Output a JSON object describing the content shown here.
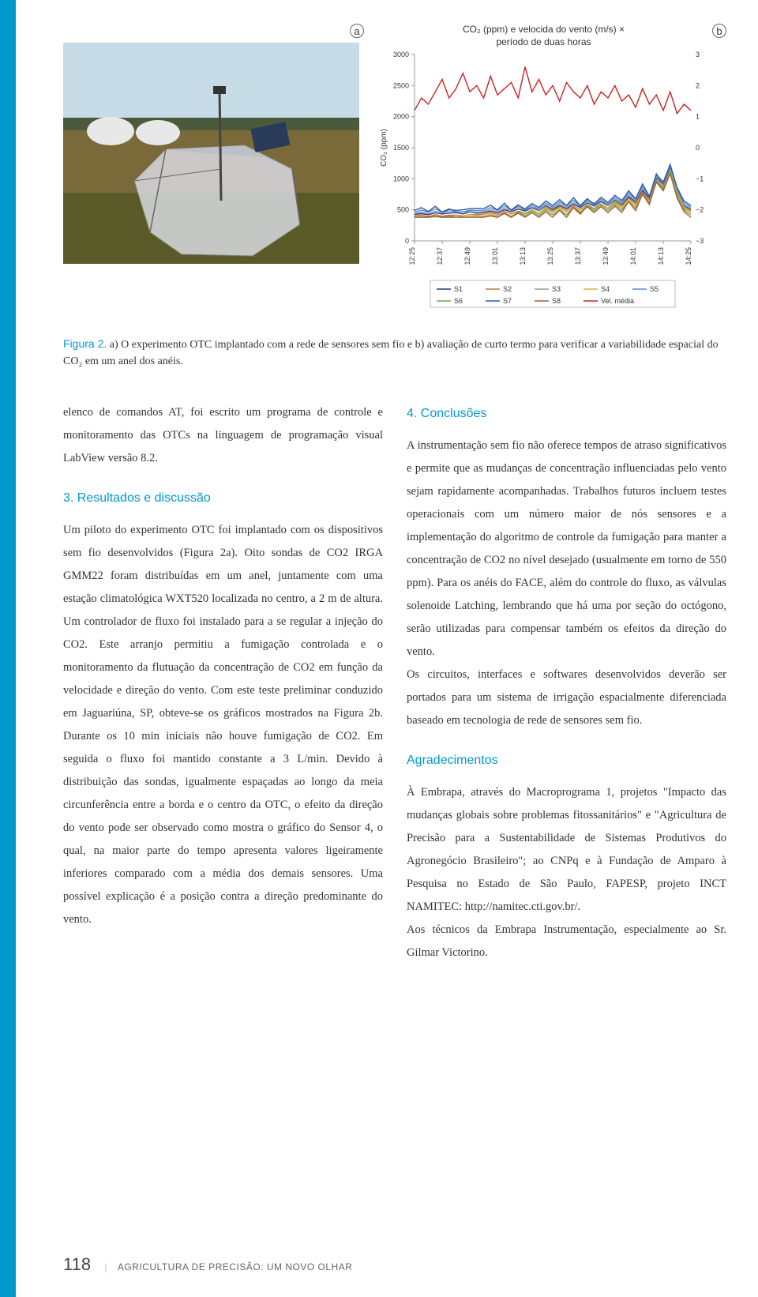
{
  "figure": {
    "panel_a_label": "a",
    "panel_b_label": "b",
    "chart": {
      "type": "line",
      "title_line1": "CO₂ (ppm) e velocida do vento (m/s) ×",
      "title_line2": "período de duas horas",
      "y_left_label": "CO₂ (ppm)",
      "y_left_ticks": [
        "0",
        "500",
        "1000",
        "1500",
        "2000",
        "2500",
        "3000"
      ],
      "y_left_min": 0,
      "y_left_max": 3000,
      "y_right_ticks": [
        "−3",
        "−2",
        "−1",
        "0",
        "1",
        "2",
        "3"
      ],
      "y_right_min": -3,
      "y_right_max": 3,
      "x_ticks": [
        "12:25",
        "12:37",
        "12:49",
        "13:01",
        "13:13",
        "13:25",
        "13:37",
        "13:49",
        "14:01",
        "14:13",
        "14:25"
      ],
      "legend": [
        "S1",
        "S2",
        "S3",
        "S4",
        "S5",
        "S6",
        "S7",
        "S8",
        "Vel. média"
      ],
      "colors": {
        "S1": "#1f3a8a",
        "S2": "#c47a3a",
        "S3": "#9a9a9a",
        "S4": "#d4b83a",
        "S5": "#5a8ad4",
        "S6": "#6aa84f",
        "S7": "#2a5aa8",
        "S8": "#a85a3a",
        "vel": "#cc2222"
      },
      "plot_bg": "#ffffff",
      "axis_color": "#999999",
      "line_width": 1.4,
      "vel_series": [
        1.2,
        1.6,
        1.4,
        1.8,
        2.2,
        1.6,
        1.9,
        2.4,
        1.8,
        2.0,
        1.6,
        2.3,
        1.7,
        1.9,
        2.1,
        1.6,
        2.6,
        1.8,
        2.2,
        1.7,
        2.0,
        1.5,
        2.1,
        1.8,
        1.6,
        2.0,
        1.4,
        1.8,
        1.6,
        2.0,
        1.5,
        1.7,
        1.3,
        1.9,
        1.4,
        1.7,
        1.2,
        1.8,
        1.1,
        1.4,
        1.2
      ],
      "s_baseline": [
        420,
        430,
        415,
        440,
        425,
        435,
        445,
        420,
        460,
        430,
        450,
        470,
        440,
        490,
        460,
        500,
        470,
        520,
        480,
        550,
        500,
        560,
        510,
        580,
        530,
        600,
        550,
        620,
        560,
        640,
        580,
        700,
        620,
        800,
        680,
        1000,
        900,
        1150,
        800,
        550,
        500
      ],
      "s_jitter": [
        30,
        60,
        40,
        70,
        50,
        80,
        60,
        90,
        50,
        100
      ]
    },
    "caption_label": "Figura 2.",
    "caption_text": " a) O experimento OTC implantado com a rede de sensores sem fio e b) avaliação de curto termo para verificar a variabilidade espacial do CO₂ em um anel dos anéis."
  },
  "col_left": {
    "para1": "elenco de comandos AT, foi escrito um programa de controle e monitoramento das OTCs na linguagem de programação visual LabView versão 8.2.",
    "heading3": "3. Resultados e discussão",
    "para2": "Um piloto do experimento OTC foi implantado com os dispositivos sem fio desenvolvidos (Figura 2a). Oito sondas de CO2 IRGA GMM22 foram distribuídas em um anel, juntamente com uma estação climatológica WXT520 localizada no centro, a 2 m de altura. Um controlador de fluxo foi instalado para a se regular a injeção do CO2. Este arranjo permitiu a fumigação controlada e o monitoramento da flutuação da concentração de CO2 em função da velocidade e direção do vento. Com este teste preliminar conduzido em Jaguariúna, SP, obteve-se os gráficos mostrados na Figura 2b. Durante os 10 min iniciais não houve fumigação de CO2. Em seguida o fluxo foi mantido constante a 3 L/min. Devido à distribuição das sondas, igualmente espaçadas ao longo da meia circunferência entre a borda e o centro da OTC, o efeito da direção do vento pode ser observado como mostra o gráfico do Sensor 4, o qual, na maior parte do tempo apresenta valores ligeiramente inferiores comparado com a média dos demais sensores. Uma possível explicação é a posição contra a direção predominante do vento."
  },
  "col_right": {
    "heading4": "4. Conclusões",
    "para4": "A instrumentação sem fio não oferece tempos de atraso significativos e permite que as mudanças de concentração influenciadas pelo vento sejam rapidamente acompanhadas. Trabalhos futuros incluem testes operacionais com um número maior de nós sensores e a implementação do algoritmo de controle da fumigação para manter a concentração de CO2 no nível desejado (usualmente em torno de 550 ppm). Para os anéis do FACE, além do controle do fluxo, as válvulas solenoide Latching, lembrando que há uma por seção do octógono, serão utilizadas para compensar também os efeitos da direção do vento.",
    "para4b": "Os circuitos, interfaces e softwares desenvolvidos deverão ser portados para um sistema de irrigação espacialmente diferenciada baseado em tecnologia de rede de sensores sem fio.",
    "headingA": "Agradecimentos",
    "paraA": "À Embrapa, através do Macroprograma 1, projetos \"Impacto das mudanças globais sobre problemas fitossanitários\" e \"Agricultura de Precisão para a Sustentabilidade de Sistemas Produtivos do Agronegócio Brasileiro\"; ao CNPq e à Fundação de Amparo à Pesquisa no Estado de São Paulo, FAPESP, projeto INCT NAMITEC: http://namitec.cti.gov.br/.",
    "paraA2": "Aos técnicos da Embrapa Instrumentação, especialmente ao Sr. Gilmar Victorino."
  },
  "footer": {
    "page": "118",
    "text": "AGRICULTURA DE PRECISÃO: UM NOVO OLHAR"
  }
}
